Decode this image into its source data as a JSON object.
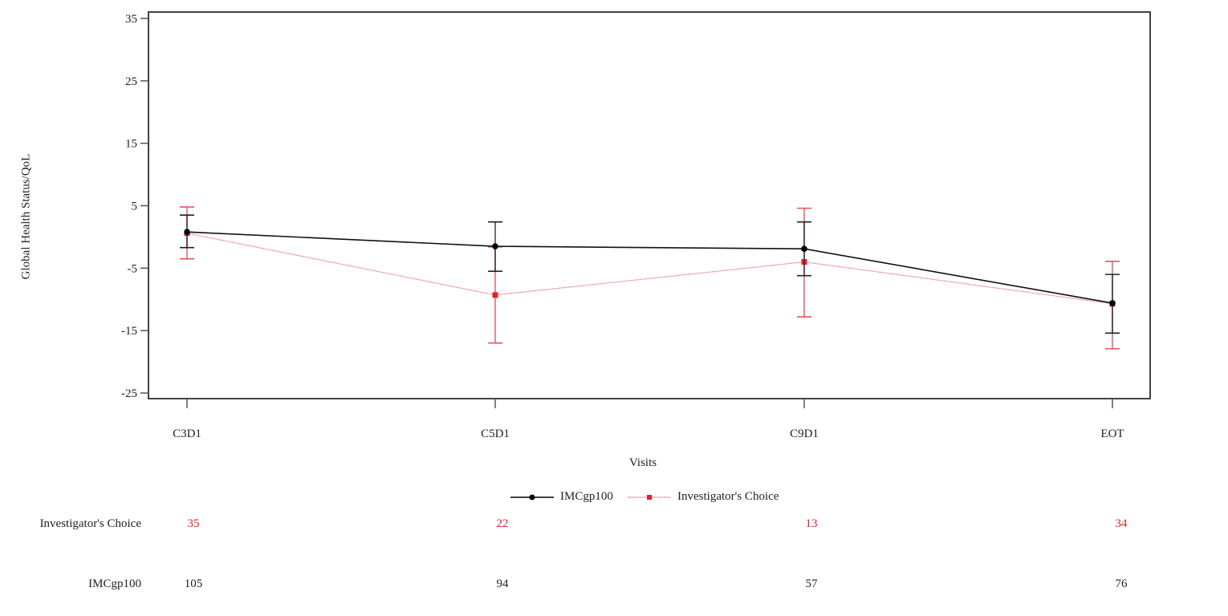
{
  "chart_data": {
    "type": "line",
    "title": "",
    "xlabel": "Visits",
    "ylabel": "Global Health Status/QoL",
    "ylim": [
      -25,
      35
    ],
    "yticks": [
      35,
      25,
      15,
      5,
      -5,
      -15,
      -25
    ],
    "categories": [
      "C3D1",
      "C5D1",
      "C9D1",
      "EOT"
    ],
    "grid": false,
    "legend_position": "bottom",
    "series": [
      {
        "name": "IMCgp100",
        "color": "#000000",
        "marker": "circle",
        "line_style": "solid",
        "values": [
          0.8,
          -1.5,
          -1.9,
          -10.6
        ],
        "ci_upper": [
          3.5,
          2.4,
          2.4,
          -6.0
        ],
        "ci_lower": [
          -1.7,
          -5.5,
          -6.2,
          -15.4
        ],
        "n": [
          105,
          94,
          57,
          76
        ]
      },
      {
        "name": "Investigator's Choice",
        "color": "#e8202a",
        "marker": "square",
        "line_style": "dotted",
        "values": [
          0.6,
          -9.3,
          -4.0,
          -10.7
        ],
        "ci_upper": [
          4.8,
          -1.6,
          4.6,
          -3.9
        ],
        "ci_lower": [
          -3.5,
          -17.0,
          -12.8,
          -17.9
        ],
        "n": [
          35,
          22,
          13,
          34
        ]
      }
    ],
    "risk_table": {
      "rows": [
        {
          "label": "Investigator's Choice",
          "color": "#e8202a",
          "values": [
            "35",
            "22",
            "13",
            "34"
          ]
        },
        {
          "label": "IMCgp100",
          "color": "#222222",
          "values": [
            "105",
            "94",
            "57",
            "76"
          ]
        }
      ]
    }
  }
}
